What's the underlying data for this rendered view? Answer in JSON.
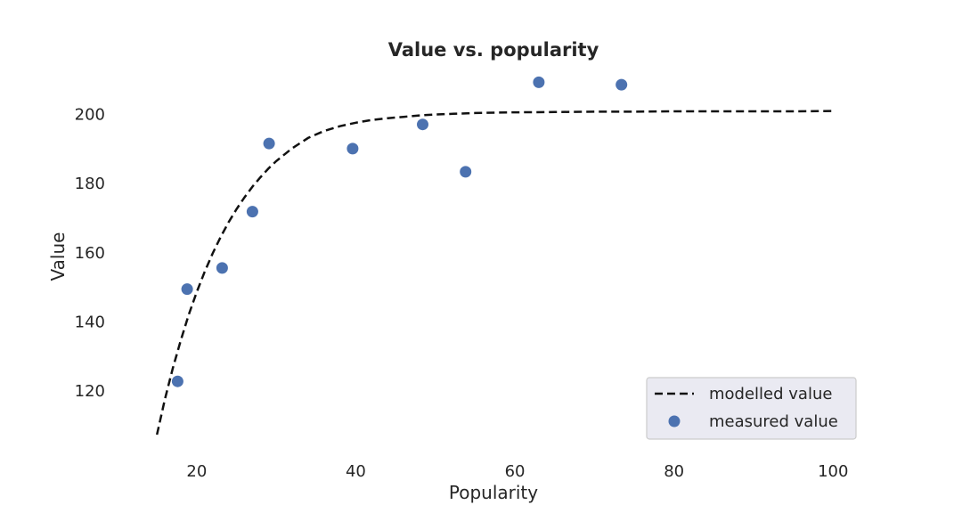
{
  "chart_data": {
    "type": "scatter",
    "title": "Value vs. popularity",
    "xlabel": "Popularity",
    "ylabel": "Value",
    "xlim": [
      10.5,
      104
    ],
    "ylim": [
      102,
      213
    ],
    "xticks": [
      20,
      40,
      60,
      80,
      100
    ],
    "yticks": [
      120,
      140,
      160,
      180,
      200
    ],
    "grid": false,
    "legend_position": "lower-right",
    "series": [
      {
        "name": "modelled value",
        "kind": "line",
        "style": "dashed",
        "color": "#111111",
        "x": [
          15,
          16,
          17,
          18,
          19,
          20,
          21,
          22,
          23,
          24,
          25,
          26,
          27,
          28,
          29,
          30,
          32,
          34,
          36,
          38,
          40,
          42,
          44,
          46,
          48,
          50,
          55,
          60,
          65,
          70,
          75,
          80,
          85,
          90,
          95,
          100
        ],
        "y": [
          107.4,
          117.6,
          126.6,
          134.7,
          142.1,
          148.6,
          154.5,
          159.8,
          164.5,
          168.8,
          172.6,
          176.0,
          179.1,
          181.8,
          184.3,
          186.5,
          190.2,
          193.2,
          195.2,
          196.6,
          197.6,
          198.4,
          198.9,
          199.3,
          199.7,
          200.0,
          200.4,
          200.6,
          200.7,
          200.8,
          200.8,
          200.9,
          200.9,
          200.9,
          200.9,
          201.0
        ]
      },
      {
        "name": "measured value",
        "kind": "scatter",
        "color": "#4c72b0",
        "x": [
          17.6,
          18.8,
          23.2,
          27.0,
          29.1,
          39.6,
          48.4,
          53.8,
          63.0,
          73.4
        ],
        "y": [
          122.8,
          149.5,
          155.6,
          171.9,
          191.6,
          190.1,
          197.1,
          183.4,
          209.3,
          208.6
        ]
      }
    ]
  }
}
